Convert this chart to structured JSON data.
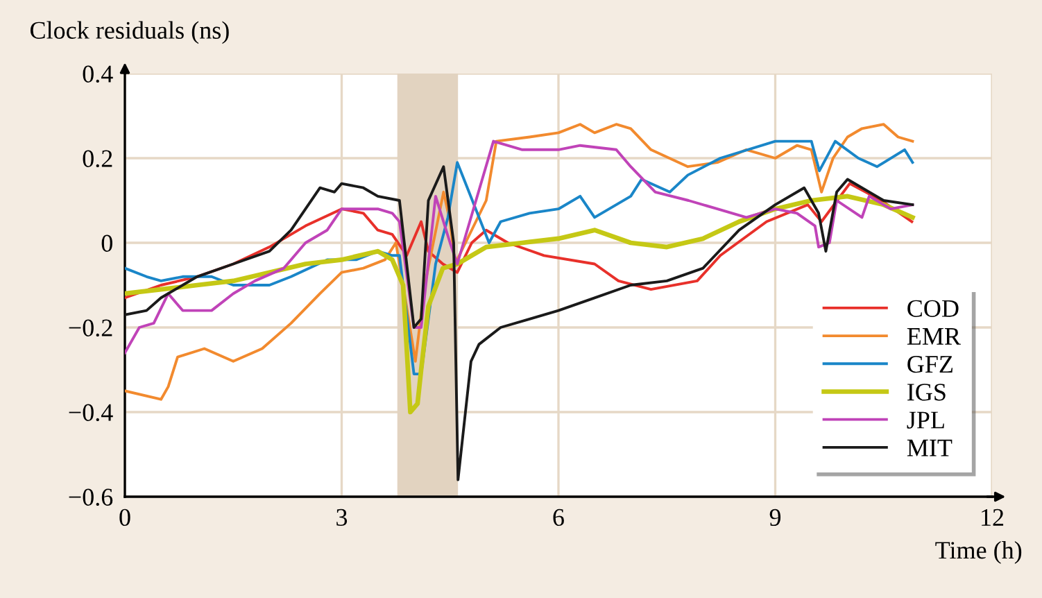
{
  "chart_data": {
    "type": "line",
    "xlabel": "Time (h)",
    "ylabel": "Clock residuals (ns)",
    "xlim": [
      0,
      12
    ],
    "ylim": [
      -0.6,
      0.4
    ],
    "xticks": [
      0,
      3,
      6,
      9,
      12
    ],
    "yticks": [
      {
        "value": -0.6,
        "label": "−0.6"
      },
      {
        "value": -0.4,
        "label": "−0.4"
      },
      {
        "value": -0.2,
        "label": "−0.2"
      },
      0,
      {
        "value": 0.2,
        "label": "0.2"
      },
      {
        "value": 0.4,
        "label": "0.4"
      }
    ],
    "grid": true,
    "legend": "bottom right",
    "line_style": "solid",
    "bands": [
      {
        "axis": "x",
        "from": 3.77,
        "to": 4.61,
        "color": "#e2d3c0"
      }
    ],
    "series": [
      {
        "name": "COD",
        "color": "#e8302a",
        "x": [
          0,
          0.5,
          1,
          1.5,
          2,
          2.5,
          3,
          3.3,
          3.5,
          3.7,
          3.9,
          4.1,
          4.2,
          4.4,
          4.6,
          4.8,
          5.0,
          5.3,
          5.8,
          6.5,
          6.83,
          7.28,
          7.92,
          8.24,
          8.88,
          9.45,
          9.64,
          10.03,
          10.47,
          10.89
        ],
        "values": [
          -0.13,
          -0.1,
          -0.08,
          -0.05,
          -0.01,
          0.04,
          0.08,
          0.07,
          0.03,
          0.02,
          -0.03,
          0.05,
          -0.02,
          -0.05,
          -0.07,
          0.0,
          0.03,
          0.0,
          -0.03,
          -0.05,
          -0.09,
          -0.11,
          -0.09,
          -0.03,
          0.05,
          0.09,
          0.05,
          0.14,
          0.1,
          0.05
        ]
      },
      {
        "name": "EMR",
        "color": "#f28a2e",
        "x": [
          0,
          0.5,
          0.6,
          0.73,
          1.1,
          1.5,
          1.9,
          2.3,
          2.7,
          3.0,
          3.3,
          3.6,
          3.75,
          3.85,
          4.02,
          4.15,
          4.41,
          4.5,
          4.57,
          5.0,
          5.14,
          5.6,
          6.0,
          6.3,
          6.5,
          6.8,
          7.0,
          7.28,
          7.79,
          8.2,
          8.6,
          9.0,
          9.3,
          9.5,
          9.64,
          9.8,
          10.0,
          10.2,
          10.5,
          10.7,
          10.9
        ],
        "values": [
          -0.35,
          -0.37,
          -0.34,
          -0.27,
          -0.25,
          -0.28,
          -0.25,
          -0.19,
          -0.12,
          -0.07,
          -0.06,
          -0.04,
          0.0,
          -0.1,
          -0.28,
          -0.1,
          0.12,
          0.05,
          -0.05,
          0.1,
          0.24,
          0.25,
          0.26,
          0.28,
          0.26,
          0.28,
          0.27,
          0.22,
          0.18,
          0.19,
          0.22,
          0.2,
          0.23,
          0.22,
          0.12,
          0.2,
          0.25,
          0.27,
          0.28,
          0.25,
          0.24
        ]
      },
      {
        "name": "GFZ",
        "color": "#1a86c8",
        "x": [
          0,
          0.3,
          0.5,
          0.8,
          1.2,
          1.5,
          2.0,
          2.3,
          2.8,
          3.2,
          3.5,
          3.7,
          3.8,
          4.0,
          4.1,
          4.3,
          4.47,
          4.6,
          5.04,
          5.2,
          5.6,
          6.0,
          6.3,
          6.5,
          7.0,
          7.15,
          7.54,
          7.79,
          8.24,
          9.0,
          9.5,
          9.61,
          9.83,
          10.15,
          10.41,
          10.79,
          10.9
        ],
        "values": [
          -0.06,
          -0.08,
          -0.09,
          -0.08,
          -0.08,
          -0.1,
          -0.1,
          -0.08,
          -0.04,
          -0.04,
          -0.02,
          -0.03,
          -0.03,
          -0.31,
          -0.31,
          -0.05,
          0.06,
          0.19,
          0.0,
          0.05,
          0.07,
          0.08,
          0.11,
          0.06,
          0.11,
          0.15,
          0.12,
          0.16,
          0.2,
          0.24,
          0.24,
          0.17,
          0.24,
          0.2,
          0.18,
          0.22,
          0.19
        ]
      },
      {
        "name": "IGS",
        "color": "#c5c815",
        "x": [
          0,
          0.5,
          1.0,
          1.5,
          2.0,
          2.5,
          3.0,
          3.5,
          3.7,
          3.85,
          3.95,
          4.05,
          4.1,
          4.2,
          4.4,
          4.6,
          5.0,
          5.5,
          6.0,
          6.5,
          7.0,
          7.5,
          8.0,
          8.5,
          9.0,
          9.5,
          10.0,
          10.5,
          10.9
        ],
        "values": [
          -0.12,
          -0.11,
          -0.1,
          -0.09,
          -0.07,
          -0.05,
          -0.04,
          -0.02,
          -0.04,
          -0.1,
          -0.4,
          -0.38,
          -0.3,
          -0.15,
          -0.06,
          -0.05,
          -0.01,
          0.0,
          0.01,
          0.03,
          0.0,
          -0.01,
          0.01,
          0.05,
          0.08,
          0.1,
          0.11,
          0.09,
          0.06
        ]
      },
      {
        "name": "JPL",
        "color": "#c043b8",
        "x": [
          0,
          0.2,
          0.4,
          0.6,
          0.8,
          1.2,
          1.5,
          1.8,
          2.2,
          2.5,
          2.8,
          3.0,
          3.5,
          3.7,
          3.8,
          4.0,
          4.1,
          4.3,
          4.5,
          4.6,
          5.1,
          5.5,
          6.0,
          6.3,
          6.8,
          7.0,
          7.34,
          7.8,
          8.2,
          8.6,
          9.0,
          9.3,
          9.55,
          9.6,
          9.75,
          9.85,
          10.2,
          10.3,
          10.6,
          10.9
        ],
        "values": [
          -0.26,
          -0.2,
          -0.19,
          -0.12,
          -0.16,
          -0.16,
          -0.12,
          -0.09,
          -0.06,
          0.0,
          0.03,
          0.08,
          0.08,
          0.07,
          0.05,
          -0.2,
          -0.2,
          0.11,
          0.0,
          -0.05,
          0.24,
          0.22,
          0.22,
          0.23,
          0.22,
          0.18,
          0.12,
          0.1,
          0.08,
          0.06,
          0.08,
          0.07,
          0.04,
          -0.01,
          0.0,
          0.1,
          0.06,
          0.11,
          0.08,
          0.09
        ]
      },
      {
        "name": "MIT",
        "color": "#1a1a1a",
        "x": [
          0,
          0.3,
          0.5,
          1.0,
          1.5,
          2.0,
          2.3,
          2.5,
          2.7,
          2.9,
          3.0,
          3.3,
          3.5,
          3.8,
          4.0,
          4.1,
          4.2,
          4.41,
          4.55,
          4.61,
          4.79,
          4.9,
          5.2,
          5.6,
          6.0,
          6.5,
          7.0,
          7.5,
          8.0,
          8.5,
          9.0,
          9.4,
          9.6,
          9.7,
          9.85,
          10.0,
          10.5,
          10.9
        ],
        "values": [
          -0.17,
          -0.16,
          -0.13,
          -0.08,
          -0.05,
          -0.02,
          0.03,
          0.08,
          0.13,
          0.12,
          0.14,
          0.13,
          0.11,
          0.1,
          -0.2,
          -0.18,
          0.1,
          0.18,
          0.0,
          -0.56,
          -0.28,
          -0.24,
          -0.2,
          -0.18,
          -0.16,
          -0.13,
          -0.1,
          -0.09,
          -0.06,
          0.03,
          0.09,
          0.13,
          0.07,
          -0.02,
          0.12,
          0.15,
          0.1,
          0.09
        ]
      }
    ]
  }
}
